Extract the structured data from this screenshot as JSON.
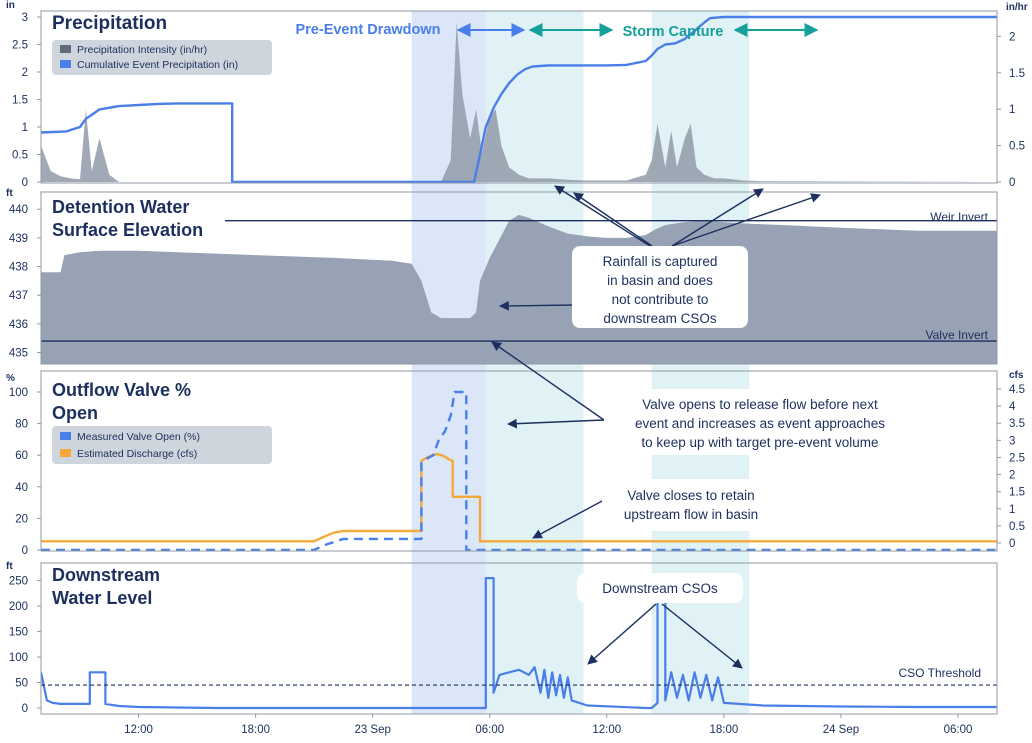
{
  "colors": {
    "frame": "#8e9aa6",
    "navy": "#1c2f5e",
    "gray_fill": "#97a0ae",
    "elev_fill": "#97a3b4",
    "blue": "#4a7ee8",
    "orange": "#f3a93a",
    "teal": "#15a09b",
    "band_blue": "#dbe6f8",
    "band_teal": "#e1f2f6",
    "legend_bg": "#cfd5dc"
  },
  "bands": {
    "drawdown_label": "Pre-Event Drawdown",
    "capture_label": "Storm Capture"
  },
  "x_axis": {
    "unit": "hours since start of record",
    "ticks": [
      {
        "label": "12:00"
      },
      {
        "label": "18:00"
      },
      {
        "label": "23 Sep"
      },
      {
        "label": "06:00"
      },
      {
        "label": "12:00"
      },
      {
        "label": "18:00"
      },
      {
        "label": "24 Sep"
      },
      {
        "label": "06:00"
      }
    ]
  },
  "panels": {
    "precip": {
      "title": "Precipitation",
      "left_unit": "in",
      "right_unit": "in/hr",
      "left_ticks": [
        "0",
        "0.5",
        "1",
        "1.5",
        "2",
        "2.5",
        "3"
      ],
      "right_ticks": [
        "0",
        "0.5",
        "1",
        "1.5",
        "2"
      ],
      "legend": [
        "Precipitation Intensity (in/hr)",
        "Cumulative Event Precipitation (in)"
      ]
    },
    "elev": {
      "title_line1": "Detention Water",
      "title_line2": "Surface Elevation",
      "left_unit": "ft",
      "left_ticks": [
        "435",
        "436",
        "437",
        "438",
        "439",
        "440"
      ],
      "weir_label": "Weir Invert",
      "valve_label": "Valve Invert"
    },
    "valve": {
      "title_line1": "Outflow Valve %",
      "title_line2": "Open",
      "left_unit": "%",
      "right_unit": "cfs",
      "left_ticks": [
        "0",
        "20",
        "40",
        "60",
        "80",
        "100"
      ],
      "right_ticks": [
        "0",
        "0.5",
        "1",
        "1.5",
        "2",
        "2.5",
        "3",
        "3.5",
        "4",
        "4.5"
      ],
      "legend": [
        "Measured Valve Open (%)",
        "Estimated Discharge (cfs)"
      ]
    },
    "down": {
      "title_line1": "Downstream",
      "title_line2": "Water Level",
      "left_unit": "ft",
      "left_ticks": [
        "0",
        "50",
        "100",
        "150",
        "200",
        "250"
      ],
      "cso_label": "CSO Threshold"
    }
  },
  "annotations": {
    "rain": [
      "Rainfall is captured",
      "in basin and does",
      "not contribute to",
      "downstream CSOs"
    ],
    "valve_opens": [
      "Valve opens to release flow before next",
      "event and increases as event approaches",
      "to keep up with target pre-event volume"
    ],
    "valve_closes": [
      "Valve closes to retain",
      "upstream flow in basin"
    ],
    "cso": [
      "Downstream CSOs"
    ]
  },
  "chart_data": [
    {
      "type": "area",
      "title": "Precipitation",
      "series": [
        {
          "name": "Precipitation Intensity (in/hr)",
          "axis": "right",
          "x": [
            7,
            7.5,
            8,
            8.5,
            9,
            9.3,
            9.6,
            10,
            10.5,
            11,
            24,
            27.5,
            28,
            28.3,
            28.6,
            29,
            29.3,
            29.6,
            30,
            30.3,
            30.6,
            31,
            31.5,
            32,
            33,
            34,
            35,
            36,
            37,
            38,
            38.3,
            38.6,
            39,
            39.3,
            39.6,
            40,
            40.3,
            40.6,
            41,
            41.5,
            42,
            43,
            44,
            56
          ],
          "y": [
            0.5,
            0.15,
            0.08,
            0.05,
            0.04,
            1.0,
            0.15,
            0.6,
            0.1,
            0,
            0,
            0,
            0.3,
            2.2,
            1.2,
            0.6,
            1.0,
            0.4,
            0.9,
            1.0,
            0.5,
            0.2,
            0.1,
            0.05,
            0.05,
            0.03,
            0.02,
            0.02,
            0.02,
            0.1,
            0.3,
            0.8,
            0.2,
            0.7,
            0.2,
            0.6,
            0.8,
            0.2,
            0.1,
            0.05,
            0.05,
            0.02,
            0.01,
            0
          ]
        },
        {
          "name": "Cumulative Event Precipitation (in)",
          "axis": "left",
          "x": [
            7,
            8.3,
            9,
            9.3,
            9.6,
            10,
            11,
            12,
            13,
            14,
            15,
            16.8,
            16.8,
            29.2,
            29.5,
            29.8,
            30.2,
            30.6,
            31,
            31.4,
            31.8,
            32.2,
            33,
            36,
            37,
            38,
            38.3,
            38.6,
            39,
            39.5,
            40,
            40.5,
            41,
            41.3,
            42,
            56
          ],
          "y": [
            0.9,
            0.92,
            1.0,
            1.15,
            1.22,
            1.32,
            1.38,
            1.4,
            1.42,
            1.43,
            1.43,
            1.43,
            0,
            0,
            0.5,
            1.0,
            1.35,
            1.6,
            1.8,
            1.95,
            2.05,
            2.1,
            2.12,
            2.12,
            2.13,
            2.2,
            2.3,
            2.42,
            2.5,
            2.52,
            2.6,
            2.75,
            2.9,
            2.98,
            3.0,
            3.0
          ]
        }
      ],
      "ylim_left": [
        0,
        3
      ],
      "ylim_right": [
        0,
        2.5
      ]
    },
    {
      "type": "area",
      "title": "Detention Water Surface Elevation",
      "ylabel": "ft",
      "ylim": [
        434.6,
        440.6
      ],
      "reference_lines": [
        {
          "label": "Weir Invert",
          "value": 439.6
        },
        {
          "label": "Valve Invert",
          "value": 435.4
        }
      ],
      "series": [
        {
          "x": [
            7,
            8,
            8.2,
            9,
            10,
            12,
            14,
            18,
            22,
            25,
            26,
            26.5,
            27,
            27.5,
            28,
            29,
            29.3,
            29.5,
            30,
            31,
            31.5,
            32,
            33,
            34,
            35,
            36,
            37,
            38,
            38.5,
            39,
            40,
            41,
            43,
            45,
            48,
            50,
            52,
            56
          ],
          "y": [
            437.8,
            437.8,
            438.4,
            438.5,
            438.55,
            438.55,
            438.5,
            438.4,
            438.3,
            438.2,
            438.1,
            437.5,
            436.4,
            436.2,
            436.2,
            436.2,
            436.4,
            437.5,
            438.3,
            439.6,
            439.8,
            439.7,
            439.4,
            439.15,
            439.05,
            439.0,
            439.0,
            439.1,
            439.3,
            439.45,
            439.55,
            439.6,
            439.5,
            439.45,
            439.35,
            439.3,
            439.25,
            439.25
          ]
        }
      ]
    },
    {
      "type": "line",
      "title": "Outflow Valve % Open",
      "ylim_left": [
        0,
        100
      ],
      "ylim_right": [
        0,
        4.5
      ],
      "series": [
        {
          "name": "Measured Valve Open (%)",
          "axis": "left",
          "x": [
            7,
            21,
            21.5,
            22,
            22.5,
            23,
            25,
            26.5,
            26.5,
            26.8,
            27.1,
            27.4,
            27.7,
            28,
            28.2,
            28.5,
            28.8,
            28.8,
            29.5,
            29.5,
            56
          ],
          "y": [
            0,
            0,
            3,
            5,
            7,
            7,
            7,
            7,
            55,
            58,
            60,
            70,
            75,
            85,
            100,
            100,
            100,
            0,
            0,
            0,
            0
          ]
        },
        {
          "name": "Estimated Discharge (cfs)",
          "axis": "right",
          "x": [
            7,
            21,
            21.5,
            22,
            22.5,
            23,
            25,
            26.5,
            26.5,
            26.8,
            27,
            27.3,
            27.6,
            27.9,
            28.1,
            28.1,
            29.5,
            29.5,
            56
          ],
          "y": [
            0.05,
            0.05,
            0.18,
            0.3,
            0.35,
            0.35,
            0.35,
            0.35,
            2.4,
            2.5,
            2.55,
            2.6,
            2.55,
            2.45,
            2.4,
            1.35,
            1.35,
            0.05,
            0.05
          ]
        }
      ]
    },
    {
      "type": "line",
      "title": "Downstream Water Level",
      "ylabel": "ft",
      "ylim": [
        0,
        265
      ],
      "reference_lines": [
        {
          "label": "CSO Threshold",
          "value": 45
        }
      ],
      "series": [
        {
          "x": [
            7,
            7.3,
            7.6,
            8,
            9,
            9.5,
            9.5,
            10.3,
            10.3,
            11,
            12,
            14,
            16,
            20,
            24,
            26,
            28,
            29.5,
            29.8,
            29.8,
            30.2,
            30.2,
            30.5,
            31,
            31.5,
            32,
            32.3,
            32.6,
            32.8,
            33.0,
            33.2,
            33.4,
            33.6,
            33.8,
            34,
            34.2,
            35,
            38,
            38.3,
            38.6,
            38.6,
            39,
            39,
            39.3,
            39.6,
            39.9,
            40.2,
            40.5,
            40.8,
            41.1,
            41.4,
            41.7,
            42,
            44,
            48,
            52,
            56
          ],
          "y": [
            70,
            15,
            10,
            8,
            8,
            8,
            70,
            70,
            8,
            4,
            2,
            1,
            0,
            0,
            0,
            0,
            0,
            0,
            0,
            255,
            255,
            30,
            65,
            70,
            75,
            65,
            80,
            30,
            75,
            20,
            70,
            25,
            65,
            20,
            60,
            15,
            5,
            0,
            0,
            10,
            255,
            255,
            15,
            70,
            20,
            65,
            15,
            70,
            20,
            65,
            15,
            60,
            10,
            5,
            3,
            2,
            2
          ]
        }
      ]
    }
  ]
}
